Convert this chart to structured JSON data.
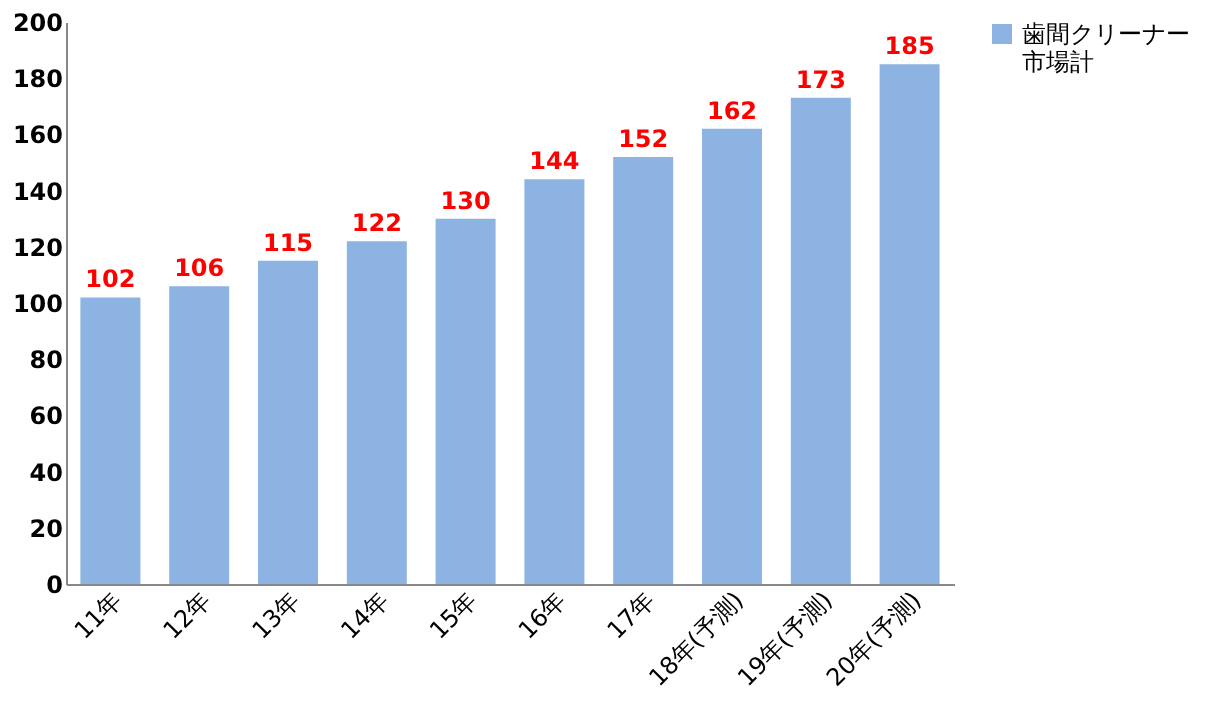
{
  "chart_data": {
    "type": "bar",
    "categories": [
      "11年",
      "12年",
      "13年",
      "14年",
      "15年",
      "16年",
      "17年",
      "18年(予測)",
      "19年(予測)",
      "20年(予測)"
    ],
    "series": [
      {
        "name": "歯間クリーナー市場計",
        "color": "#8db3e2",
        "values": [
          102,
          106,
          115,
          122,
          130,
          144,
          152,
          162,
          173,
          185
        ]
      }
    ],
    "ylim": [
      0,
      200
    ],
    "yticks": [
      0,
      20,
      40,
      60,
      80,
      100,
      120,
      140,
      160,
      180,
      200
    ],
    "grid": false,
    "legend": "right",
    "data_labels": true
  }
}
